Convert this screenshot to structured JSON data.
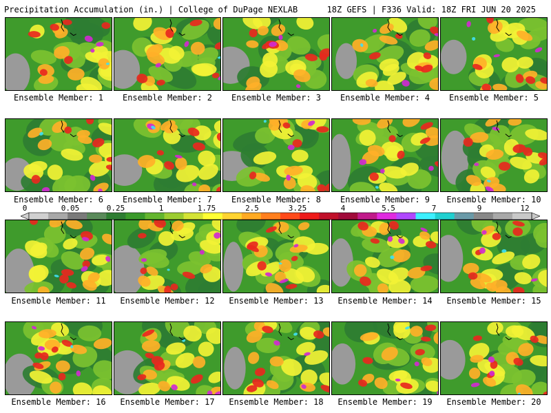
{
  "header": {
    "title": "Precipitation Accumulation (in.) | College of DuPage NEXLAB",
    "run_info": "18Z GEFS | F336 Valid: 18Z FRI JUN 20 2025"
  },
  "colorbar": {
    "labels": [
      "0",
      "0.05",
      "0.25",
      "1",
      "1.75",
      "2.5",
      "3.25",
      "4",
      "5.5",
      "7",
      "9",
      "12"
    ],
    "colors": [
      "#d0d0d0",
      "#a8a8a8",
      "#7a7a7a",
      "#5a8a5a",
      "#2e7d32",
      "#3a9a2a",
      "#63b52e",
      "#9ccc31",
      "#d4e336",
      "#ffff33",
      "#ffd430",
      "#ffaa22",
      "#ff7f1e",
      "#ff4a1a",
      "#ee1a1a",
      "#c0102a",
      "#a00a3a",
      "#c01a8a",
      "#e02ae0",
      "#b048ff",
      "#3cf0ff",
      "#20d0d0",
      "#6a9aa8",
      "#888888",
      "#a8a8a8",
      "#c8c8c8"
    ]
  },
  "ensemble": {
    "member_label_prefix": "Ensemble Member: ",
    "members": [
      {
        "number": "1",
        "label": "Ensemble Member: 1"
      },
      {
        "number": "2",
        "label": "Ensemble Member: 2"
      },
      {
        "number": "3",
        "label": "Ensemble Member: 3"
      },
      {
        "number": "4",
        "label": "Ensemble Member: 4"
      },
      {
        "number": "5",
        "label": "Ensemble Member: 5"
      },
      {
        "number": "6",
        "label": "Ensemble Member: 6"
      },
      {
        "number": "7",
        "label": "Ensemble Member: 7"
      },
      {
        "number": "8",
        "label": "Ensemble Member: 8"
      },
      {
        "number": "9",
        "label": "Ensemble Member: 9"
      },
      {
        "number": "10",
        "label": "Ensemble Member: 10"
      },
      {
        "number": "11",
        "label": "Ensemble Member: 11"
      },
      {
        "number": "12",
        "label": "Ensemble Member: 12"
      },
      {
        "number": "13",
        "label": "Ensemble Member: 13"
      },
      {
        "number": "14",
        "label": "Ensemble Member: 14"
      },
      {
        "number": "15",
        "label": "Ensemble Member: 15"
      },
      {
        "number": "16",
        "label": "Ensemble Member: 16"
      },
      {
        "number": "17",
        "label": "Ensemble Member: 17"
      },
      {
        "number": "18",
        "label": "Ensemble Member: 18"
      },
      {
        "number": "19",
        "label": "Ensemble Member: 19"
      },
      {
        "number": "20",
        "label": "Ensemble Member: 20"
      }
    ]
  },
  "map_colors": {
    "gray": "#9a9a9a",
    "green_dark": "#2e7d32",
    "green": "#3f9b2c",
    "green_light": "#7cc230",
    "yellow": "#f2f235",
    "orange": "#ffb028",
    "red": "#e8281e",
    "magenta": "#d02ad0",
    "cyan": "#40e0f0"
  }
}
